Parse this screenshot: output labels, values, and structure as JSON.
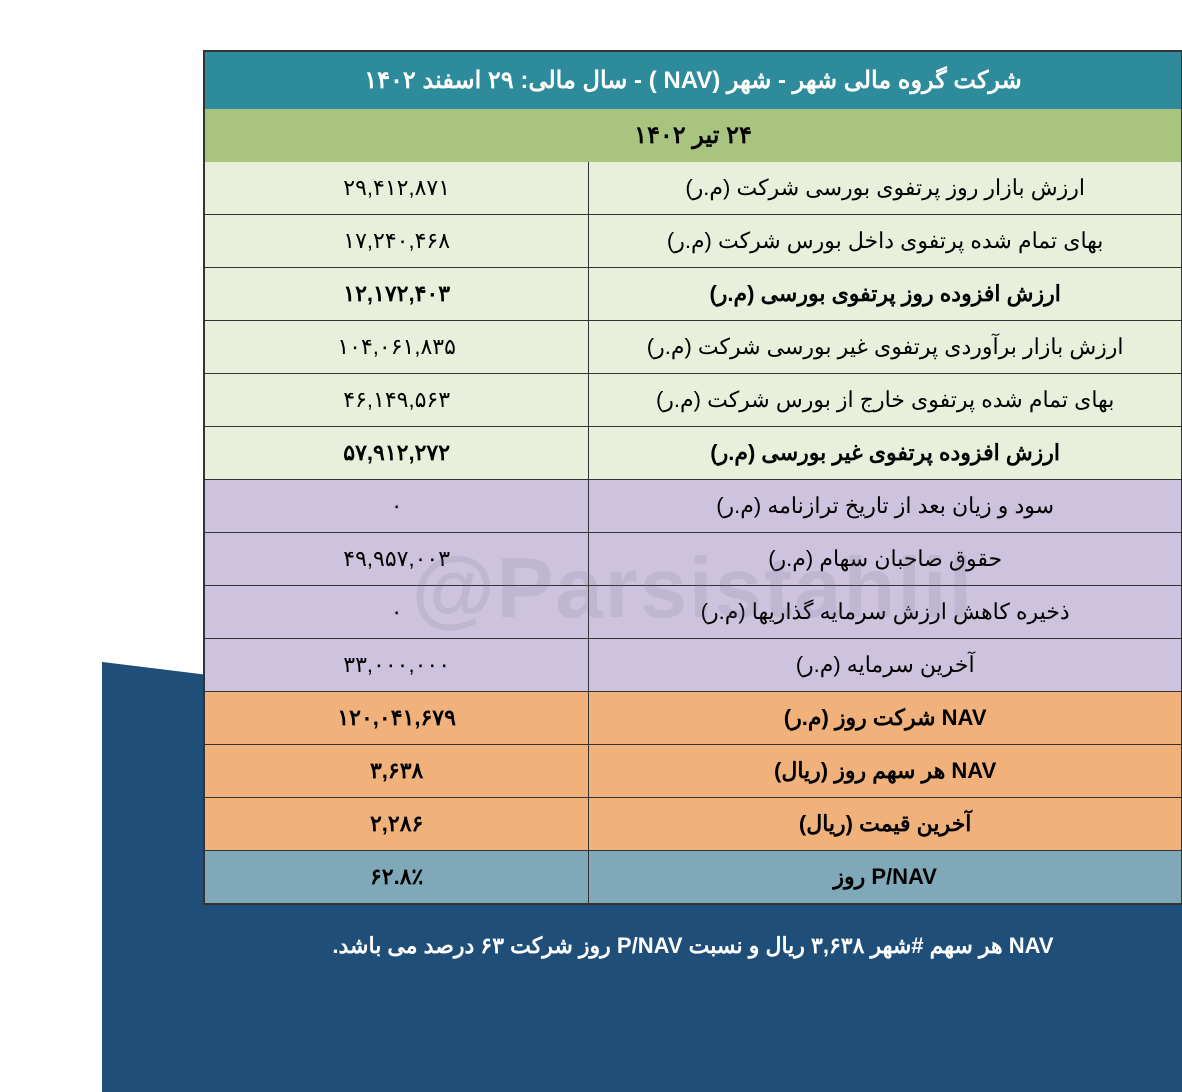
{
  "header": {
    "title": "شرکت گروه مالی شهر - شهر (NAV ) - سال مالی: ۲۹ اسفند ۱۴۰۲",
    "date": "۲۴ تیر ۱۴۰۲"
  },
  "rows": [
    {
      "label": "ارزش بازار روز پرتفوی بورسی شرکت (م.ر)",
      "value": "۲۹,۴۱۲,۸۷۱",
      "bg": "#e8f0dc",
      "bold": false
    },
    {
      "label": "بهای تمام شده پرتفوی داخل بورس شرکت (م.ر)",
      "value": "۱۷,۲۴۰,۴۶۸",
      "bg": "#e8f0dc",
      "bold": false
    },
    {
      "label": "ارزش افزوده روز پرتفوی بورسی (م.ر)",
      "value": "۱۲,۱۷۲,۴۰۳",
      "bg": "#e8f0dc",
      "bold": true
    },
    {
      "label": "ارزش بازار برآوردی پرتفوی غیر بورسی شرکت (م.ر)",
      "value": "۱۰۴,۰۶۱,۸۳۵",
      "bg": "#e8f0dc",
      "bold": false
    },
    {
      "label": "بهای تمام شده پرتفوی خارج از بورس شرکت (م.ر)",
      "value": "۴۶,۱۴۹,۵۶۳",
      "bg": "#e8f0dc",
      "bold": false
    },
    {
      "label": "ارزش افزوده پرتفوی غیر بورسی (م.ر)",
      "value": "۵۷,۹۱۲,۲۷۲",
      "bg": "#e8f0dc",
      "bold": true
    },
    {
      "label": "سود و زیان بعد از تاریخ ترازنامه (م.ر)",
      "value": "۰",
      "bg": "#cdc3de",
      "bold": false
    },
    {
      "label": "حقوق صاحبان سهام (م.ر)",
      "value": "۴۹,۹۵۷,۰۰۳",
      "bg": "#cdc3de",
      "bold": false
    },
    {
      "label": "ذخیره کاهش ارزش سرمایه گذاریها (م.ر)",
      "value": "۰",
      "bg": "#cdc3de",
      "bold": false
    },
    {
      "label": "آخرین سرمایه (م.ر)",
      "value": "۳۳,۰۰۰,۰۰۰",
      "bg": "#cdc3de",
      "bold": false
    },
    {
      "label": "NAV  شرکت روز (م.ر)",
      "value": "۱۲۰,۰۴۱,۶۷۹",
      "bg": "#f0b27a",
      "bold": true
    },
    {
      "label": "NAV  هر سهم روز (ریال)",
      "value": "۳,۶۳۸",
      "bg": "#f0b27a",
      "bold": true
    },
    {
      "label": "آخرین قیمت (ریال)",
      "value": "۲,۲۸۶",
      "bg": "#f0b27a",
      "bold": true
    },
    {
      "label": "P/NAV روز",
      "value": "۶۲.۸٪",
      "bg": "#7fa8b8",
      "bold": true
    }
  ],
  "watermark": "@Parsistahlil",
  "footer": "NAV هر سهم #شهر ۳,۶۳۸ ریال و نسبت P/NAV روز شرکت ۶۳ درصد می باشد.",
  "colors": {
    "header_bg": "#2e8b9b",
    "date_bg": "#a9c47f",
    "section_green": "#e8f0dc",
    "section_purple": "#cdc3de",
    "section_orange": "#f0b27a",
    "section_teal": "#7fa8b8",
    "page_bg_dark": "#1f4e79",
    "border": "#333333",
    "text_white": "#ffffff",
    "text_black": "#000000"
  }
}
